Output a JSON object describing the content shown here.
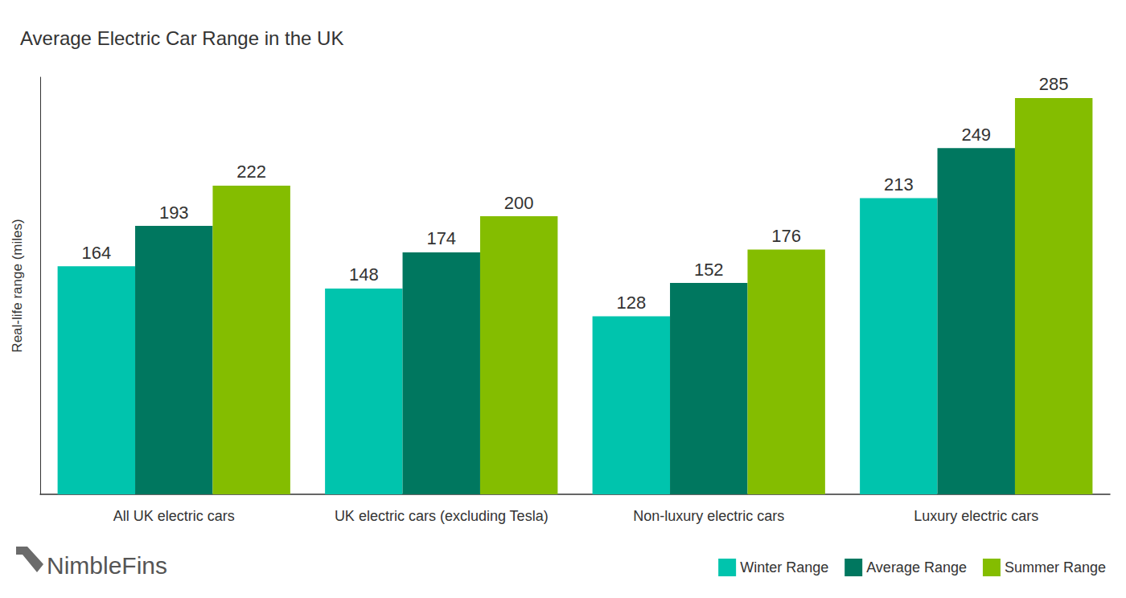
{
  "chart_data": {
    "type": "bar",
    "title": "Average Electric Car Range in the UK",
    "y_label": "Real-life range (miles)",
    "categories": [
      "All UK electric cars",
      "UK electric cars (excluding Tesla)",
      "Non-luxury electric cars",
      "Luxury electric cars"
    ],
    "series": [
      {
        "name": "Winter Range",
        "color": "#00c4ad",
        "values": [
          164,
          148,
          128,
          213
        ]
      },
      {
        "name": "Average Range",
        "color": "#00775f",
        "values": [
          193,
          174,
          152,
          249
        ]
      },
      {
        "name": "Summer Range",
        "color": "#84bd00",
        "values": [
          222,
          200,
          176,
          285
        ]
      }
    ],
    "ylim": [
      0,
      300
    ],
    "grid": false,
    "legend": "bottom-right",
    "data_labels": true,
    "tick_labels": "x",
    "annotations": [
      "NimbleFins"
    ]
  }
}
